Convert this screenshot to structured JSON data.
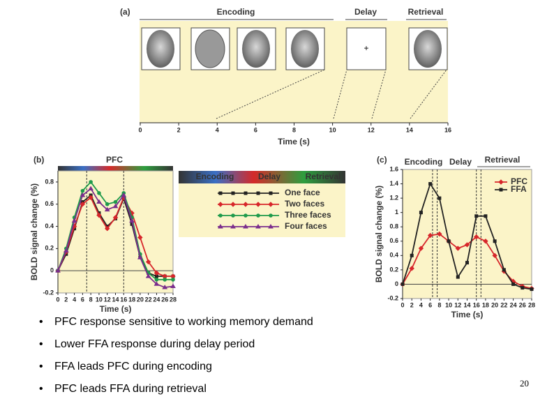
{
  "timeline": {
    "label": "(a)",
    "phases": [
      "Encoding",
      "Delay",
      "Retrieval"
    ],
    "fixation": "+",
    "xlim": [
      0,
      16
    ],
    "xticks": [
      0,
      2,
      4,
      6,
      8,
      10,
      12,
      14,
      16
    ],
    "xlabel": "Time (s)"
  },
  "chart_data": [
    {
      "type": "line",
      "label": "(b)",
      "title": "PFC",
      "phase_labels": [
        "Encoding",
        "Delay",
        "Retrieval"
      ],
      "ylabel": "BOLD signal change (%)",
      "xlabel": "Time (s)",
      "x": [
        0,
        2,
        4,
        6,
        8,
        10,
        12,
        14,
        16,
        18,
        20,
        22,
        24,
        26,
        28
      ],
      "xlim": [
        0,
        28
      ],
      "xticks": [
        0,
        2,
        4,
        6,
        8,
        10,
        12,
        14,
        16,
        18,
        20,
        22,
        24,
        26,
        28
      ],
      "ylim": [
        -0.2,
        0.9
      ],
      "yticks": [
        -0.2,
        0,
        0.2,
        0.4,
        0.6,
        0.8
      ],
      "vlines": [
        7,
        16
      ],
      "series": [
        {
          "name": "One face",
          "color": "#222222",
          "marker": "square",
          "values": [
            0,
            0.15,
            0.38,
            0.62,
            0.68,
            0.52,
            0.4,
            0.47,
            0.65,
            0.42,
            0.12,
            -0.02,
            -0.05,
            -0.05,
            -0.05
          ]
        },
        {
          "name": "Two faces",
          "color": "#d7262b",
          "marker": "diamond",
          "values": [
            0,
            0.17,
            0.4,
            0.6,
            0.66,
            0.5,
            0.38,
            0.48,
            0.66,
            0.52,
            0.3,
            0.08,
            -0.02,
            -0.05,
            -0.05
          ]
        },
        {
          "name": "Three faces",
          "color": "#1e9a4b",
          "marker": "circle",
          "values": [
            0,
            0.2,
            0.48,
            0.72,
            0.8,
            0.7,
            0.6,
            0.62,
            0.7,
            0.48,
            0.15,
            -0.02,
            -0.08,
            -0.08,
            -0.08
          ]
        },
        {
          "name": "Four faces",
          "color": "#7a2d8c",
          "marker": "triangle",
          "values": [
            0,
            0.18,
            0.45,
            0.68,
            0.74,
            0.62,
            0.55,
            0.58,
            0.68,
            0.45,
            0.12,
            -0.05,
            -0.12,
            -0.15,
            -0.14
          ]
        }
      ]
    },
    {
      "type": "line",
      "label": "(c)",
      "phase_labels": [
        "Encoding",
        "Delay",
        "Retrieval"
      ],
      "ylabel": "BOLD signal change (%)",
      "xlabel": "Time (s)",
      "x": [
        0,
        2,
        4,
        6,
        8,
        10,
        12,
        14,
        16,
        18,
        20,
        22,
        24,
        26,
        28
      ],
      "xlim": [
        0,
        28
      ],
      "xticks": [
        0,
        2,
        4,
        6,
        8,
        10,
        12,
        14,
        16,
        18,
        20,
        22,
        24,
        26,
        28
      ],
      "ylim": [
        -0.2,
        1.6
      ],
      "yticks": [
        -0.2,
        0,
        0.2,
        0.4,
        0.6,
        0.8,
        1,
        1.2,
        1.4,
        1.6
      ],
      "vlines": [
        6.5,
        7.5,
        16,
        17
      ],
      "series": [
        {
          "name": "PFC",
          "color": "#d7262b",
          "marker": "diamond",
          "values": [
            0,
            0.22,
            0.5,
            0.68,
            0.7,
            0.6,
            0.5,
            0.55,
            0.66,
            0.6,
            0.4,
            0.18,
            0.04,
            -0.03,
            -0.06
          ]
        },
        {
          "name": "FFA",
          "color": "#222222",
          "marker": "square",
          "values": [
            0,
            0.4,
            1.0,
            1.4,
            1.2,
            0.6,
            0.1,
            0.3,
            0.95,
            0.95,
            0.6,
            0.2,
            0,
            -0.05,
            -0.07
          ]
        }
      ]
    }
  ],
  "bullets": [
    "PFC response sensitive to working memory demand",
    "Lower FFA response during delay period",
    "FFA leads PFC during encoding",
    "PFC leads FFA during retrieval"
  ],
  "page_number": "20"
}
